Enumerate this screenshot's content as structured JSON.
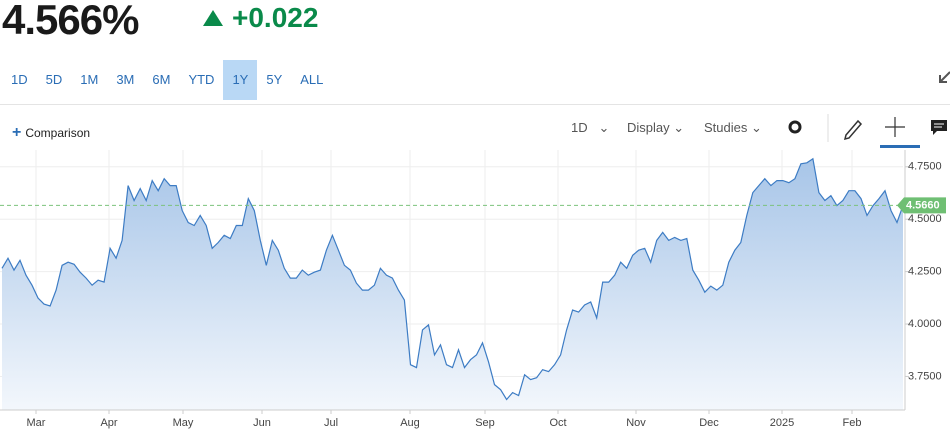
{
  "header": {
    "price": "4.566%",
    "change": "+0.022"
  },
  "ranges": [
    "1D",
    "5D",
    "1M",
    "3M",
    "6M",
    "YTD",
    "1Y",
    "5Y",
    "ALL"
  ],
  "selected_range": 6,
  "toolbar": {
    "comparison": "Comparison",
    "interval": "1D",
    "display": "Display",
    "studies": "Studies"
  },
  "chart_data": {
    "type": "area",
    "color": "#3d7cc4",
    "grid": true,
    "x_labels": [
      "Mar",
      "Apr",
      "May",
      "Jun",
      "Jul",
      "Aug",
      "Sep",
      "Oct",
      "Nov",
      "Dec",
      "2025",
      "Feb"
    ],
    "values": [
      4.266,
      4.314,
      4.257,
      4.304,
      4.233,
      4.185,
      4.124,
      4.095,
      4.086,
      4.162,
      4.28,
      4.295,
      4.285,
      4.247,
      4.219,
      4.185,
      4.209,
      4.2,
      4.361,
      4.314,
      4.399,
      4.66,
      4.589,
      4.646,
      4.589,
      4.684,
      4.636,
      4.693,
      4.66,
      4.66,
      4.541,
      4.484,
      4.47,
      4.518,
      4.47,
      4.361,
      4.389,
      4.423,
      4.408,
      4.47,
      4.47,
      4.598,
      4.541,
      4.399,
      4.28,
      4.399,
      4.352,
      4.266,
      4.219,
      4.219,
      4.257,
      4.233,
      4.247,
      4.257,
      4.352,
      4.423,
      4.352,
      4.28,
      4.257,
      4.195,
      4.162,
      4.162,
      4.185,
      4.266,
      4.233,
      4.219,
      4.162,
      4.114,
      3.806,
      3.792,
      3.972,
      3.996,
      3.853,
      3.901,
      3.806,
      3.792,
      3.877,
      3.792,
      3.83,
      3.853,
      3.91,
      3.82,
      3.711,
      3.687,
      3.64,
      3.673,
      3.659,
      3.758,
      3.735,
      3.744,
      3.782,
      3.773,
      3.806,
      3.853,
      3.972,
      4.067,
      4.057,
      4.091,
      4.105,
      4.029,
      4.2,
      4.2,
      4.233,
      4.295,
      4.266,
      4.328,
      4.352,
      4.361,
      4.295,
      4.399,
      4.437,
      4.399,
      4.413,
      4.399,
      4.408,
      4.257,
      4.209,
      4.152,
      4.181,
      4.162,
      4.185,
      4.295,
      4.352,
      4.389,
      4.518,
      4.627,
      4.66,
      4.693,
      4.66,
      4.684,
      4.684,
      4.674,
      4.693,
      4.764,
      4.769,
      4.788,
      4.627,
      4.589,
      4.612,
      4.565,
      4.589,
      4.636,
      4.636,
      4.598,
      4.518,
      4.565,
      4.598,
      4.636,
      4.541,
      4.484,
      4.566
    ],
    "ylim": [
      3.59,
      4.83
    ],
    "yticks": [
      {
        "value": 3.75,
        "label": "3.7500"
      },
      {
        "value": 4.0,
        "label": "4.0000"
      },
      {
        "value": 4.25,
        "label": "4.2500"
      },
      {
        "value": 4.5,
        "label": "4.5000"
      },
      {
        "value": 4.75,
        "label": "4.7500"
      }
    ],
    "current": {
      "value": 4.566,
      "label": "4.5660"
    }
  }
}
